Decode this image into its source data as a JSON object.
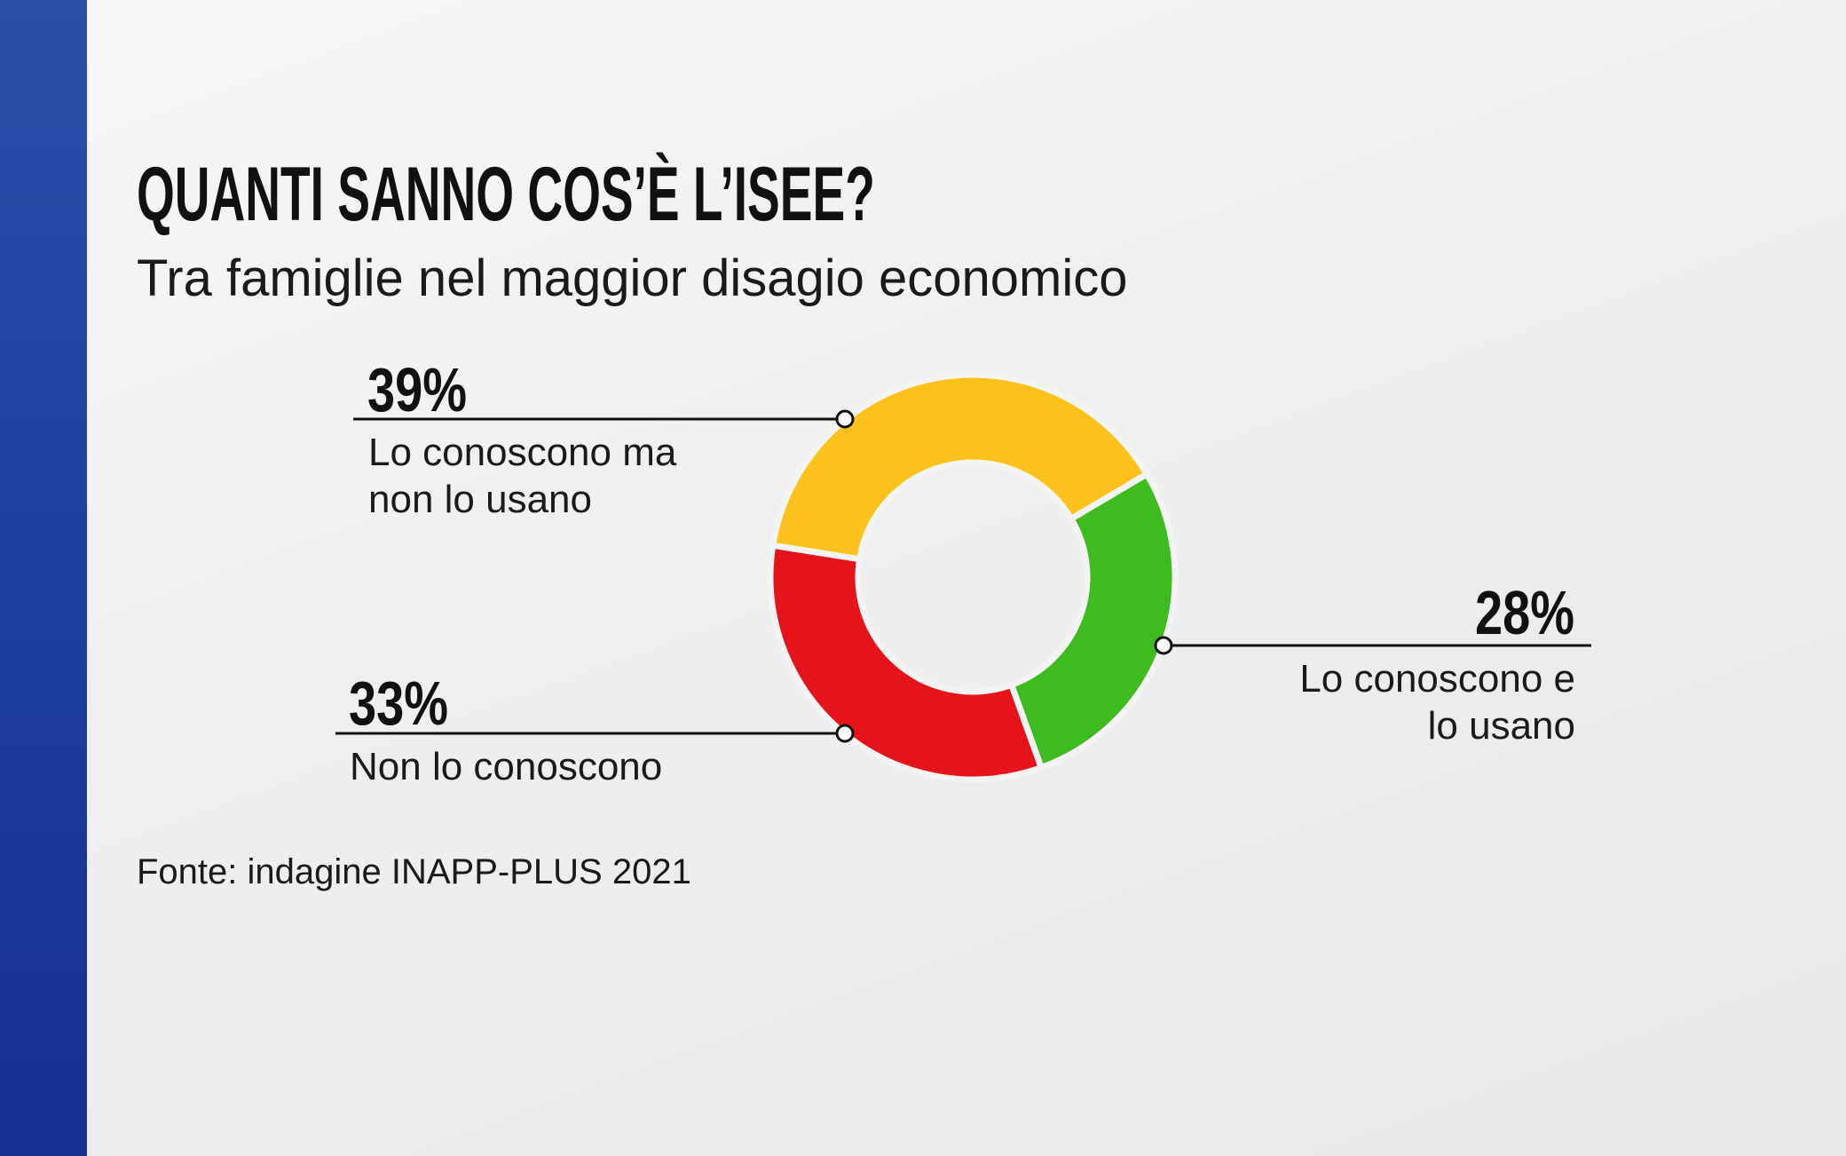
{
  "chart_data": {
    "type": "pie",
    "title": "QUANTI SANNO COS’È L’ISEE?",
    "subtitle": "Tra famiglie nel maggior disagio economico",
    "categories": [
      "Lo conoscono ma non lo usano",
      "Lo conoscono e lo usano",
      "Non lo conoscono"
    ],
    "values": [
      39,
      28,
      33
    ],
    "value_labels": [
      "39%",
      "28%",
      "33%"
    ],
    "colors": [
      "#fcc21b",
      "#3dbb1f",
      "#e5141a"
    ],
    "source": "Fonte: indagine INAPP-PLUS 2021"
  }
}
